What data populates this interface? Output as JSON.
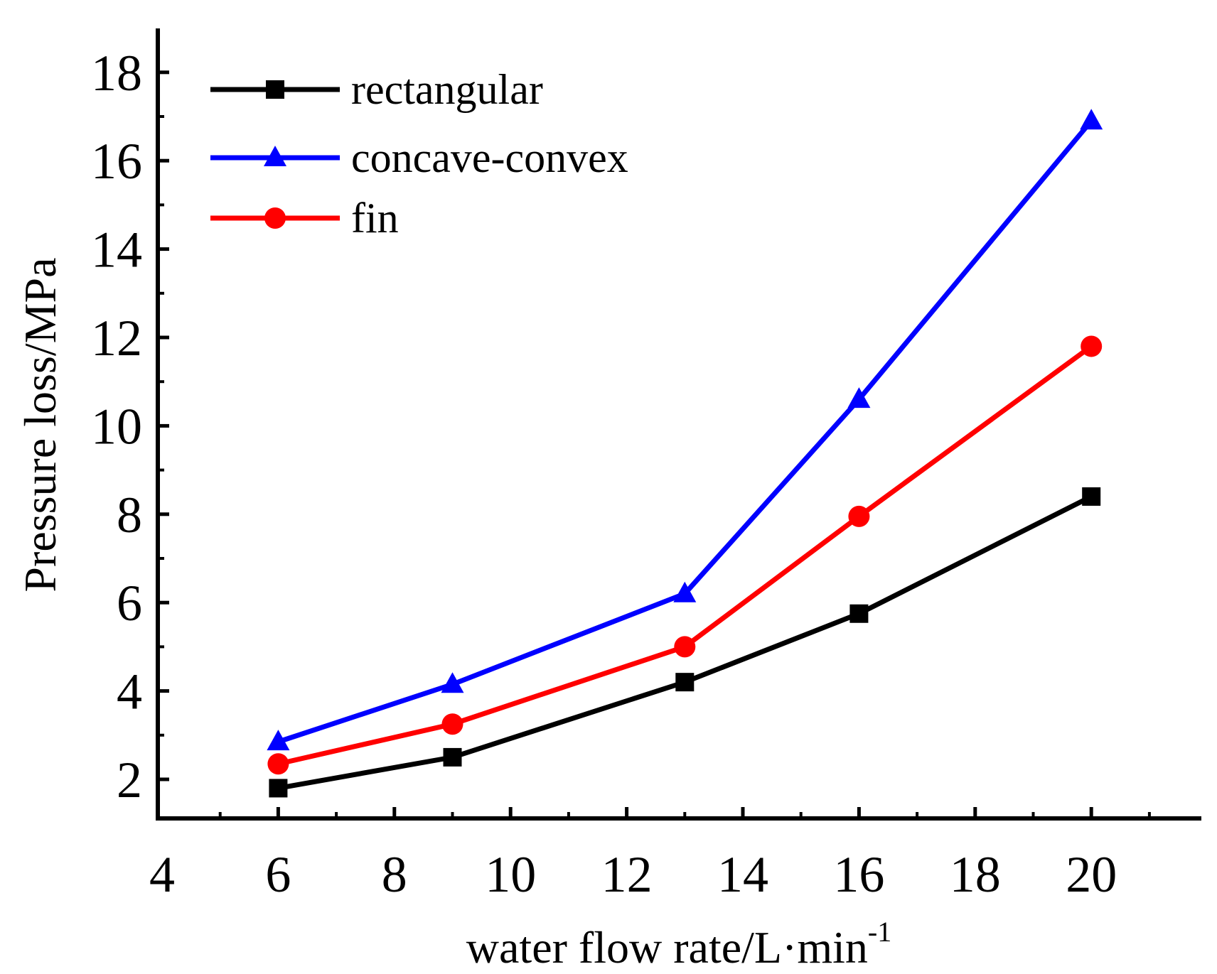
{
  "chart_data": {
    "type": "line",
    "title": "",
    "xlabel": "water flow rate/L·min",
    "xlabel_sup": "-1",
    "ylabel": "Pressure loss/MPa",
    "xlim": [
      4,
      22
    ],
    "ylim": [
      1,
      19
    ],
    "xticks": [
      4,
      6,
      8,
      10,
      12,
      14,
      16,
      18,
      20
    ],
    "xtick_labels": [
      "4",
      "6",
      "8",
      "10",
      "12",
      "14",
      "16",
      "18",
      "20"
    ],
    "yticks": [
      2,
      4,
      6,
      8,
      10,
      12,
      14,
      16,
      18
    ],
    "ytick_labels": [
      "2",
      "4",
      "6",
      "8",
      "10",
      "12",
      "14",
      "16",
      "18"
    ],
    "legend_position": "top-left",
    "grid": false,
    "x": [
      6,
      9,
      13,
      16,
      20
    ],
    "series": [
      {
        "name": "rectangular",
        "color": "#000000",
        "marker": "square",
        "values": [
          1.8,
          2.5,
          4.2,
          5.75,
          8.4
        ]
      },
      {
        "name": "concave-convex",
        "color": "#0000ff",
        "marker": "triangle",
        "values": [
          2.85,
          4.15,
          6.2,
          10.6,
          16.9
        ]
      },
      {
        "name": "fin",
        "color": "#ff0000",
        "marker": "circle",
        "values": [
          2.35,
          3.25,
          5.0,
          7.95,
          11.8
        ]
      }
    ]
  }
}
